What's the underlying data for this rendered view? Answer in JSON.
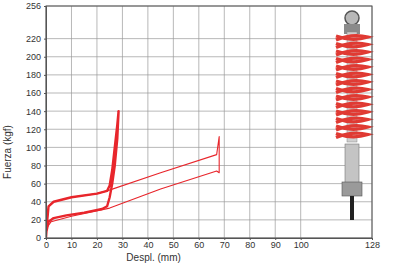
{
  "chart_data": {
    "type": "line",
    "x_label": "Despl. (mm)",
    "y_label": "Fuerza (kgf)",
    "xlim": [
      0,
      128
    ],
    "ylim": [
      0,
      256
    ],
    "xticks": [
      0,
      10,
      20,
      30,
      40,
      50,
      60,
      70,
      80,
      90,
      100,
      128
    ],
    "yticks": [
      0,
      20,
      40,
      60,
      80,
      100,
      120,
      140,
      160,
      180,
      200,
      220,
      256
    ],
    "grid": true,
    "series": [
      {
        "color": "#e8262c",
        "x": [
          0,
          0.5,
          1,
          3,
          10,
          20,
          24,
          25,
          26,
          27,
          28,
          28.5,
          28,
          27,
          26,
          25,
          24,
          22,
          15,
          8,
          3,
          1,
          0,
          0
        ],
        "values": [
          0,
          20,
          35,
          40,
          45,
          49,
          52,
          58,
          75,
          100,
          125,
          140,
          110,
          80,
          60,
          45,
          35,
          32,
          28,
          25,
          22,
          18,
          5,
          0
        ]
      },
      {
        "color": "#e8262c",
        "x": [
          0,
          0.5,
          1,
          3,
          10,
          20,
          24,
          45,
          67,
          68,
          68,
          68,
          67,
          45,
          25,
          10,
          2,
          0,
          0
        ],
        "values": [
          0,
          20,
          35,
          40,
          45,
          49,
          52,
          72,
          92,
          112,
          90,
          72,
          74,
          54,
          33,
          24,
          18,
          10,
          0
        ]
      }
    ]
  }
}
